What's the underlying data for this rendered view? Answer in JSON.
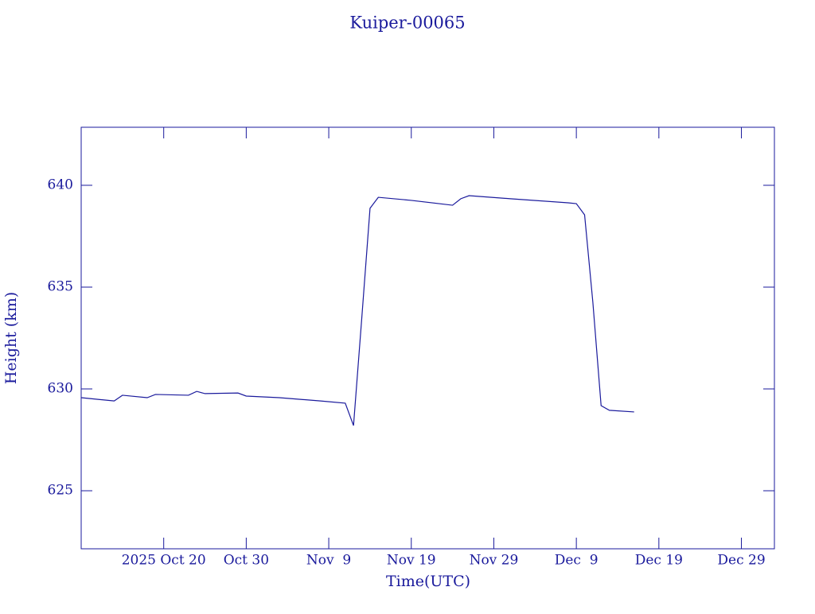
{
  "chart_data": {
    "type": "line",
    "title": "Kuiper-00065",
    "x_label": "Time(UTC)",
    "y_label": "Height (km)",
    "x": [
      "2025-10-10",
      "2025-10-14",
      "2025-10-15",
      "2025-10-18",
      "2025-10-19",
      "2025-10-23",
      "2025-10-24",
      "2025-10-25",
      "2025-10-29",
      "2025-10-30",
      "2025-11-03",
      "2025-11-08",
      "2025-11-11",
      "2025-11-12",
      "2025-11-13",
      "2025-11-14",
      "2025-11-15",
      "2025-11-19",
      "2025-11-24",
      "2025-11-25",
      "2025-11-26",
      "2025-12-01",
      "2025-12-08",
      "2025-12-09",
      "2025-12-10",
      "2025-12-11",
      "2025-12-12",
      "2025-12-13",
      "2025-12-16"
    ],
    "series": [
      {
        "name": "Height",
        "color": "#1a1a9c",
        "values": [
          629.57,
          629.41,
          629.69,
          629.57,
          629.73,
          629.69,
          629.88,
          629.77,
          629.8,
          629.65,
          629.57,
          629.41,
          629.3,
          628.2,
          633.48,
          638.87,
          639.41,
          639.26,
          639.02,
          639.34,
          639.49,
          639.34,
          639.14,
          639.1,
          638.55,
          634.26,
          629.18,
          628.95,
          628.87
        ]
      }
    ],
    "xlim": [
      "2025-10-10",
      "2026-01-02"
    ],
    "xticks": [
      {
        "value": "2025-10-20",
        "label": "2025 Oct 20"
      },
      {
        "value": "2025-10-30",
        "label": "Oct 30"
      },
      {
        "value": "2025-11-09",
        "label": "Nov  9"
      },
      {
        "value": "2025-11-19",
        "label": "Nov 19"
      },
      {
        "value": "2025-11-29",
        "label": "Nov 29"
      },
      {
        "value": "2025-12-09",
        "label": "Dec  9"
      },
      {
        "value": "2025-12-19",
        "label": "Dec 19"
      },
      {
        "value": "2025-12-29",
        "label": "Dec 29"
      }
    ],
    "ylim": [
      622.15,
      642.85
    ],
    "yticks": [
      625,
      630,
      635,
      640
    ],
    "grid": false
  }
}
